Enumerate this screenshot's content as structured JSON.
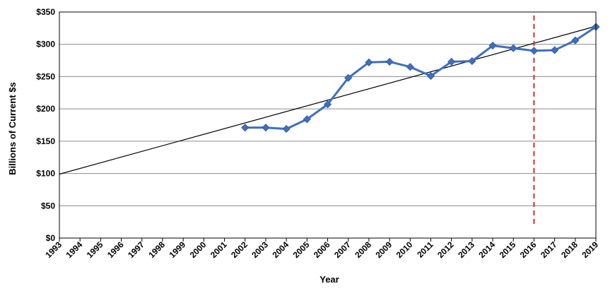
{
  "chart_data": {
    "type": "line",
    "title": "",
    "xlabel": "Year",
    "ylabel": "Billions of Current $s",
    "xlim": [
      1993,
      2019
    ],
    "ylim": [
      0,
      350
    ],
    "x_ticks": [
      "1993",
      "1994",
      "1995",
      "1996",
      "1997",
      "1998",
      "1999",
      "2000",
      "2001",
      "2002",
      "2003",
      "2004",
      "2005",
      "2006",
      "2007",
      "2008",
      "2009",
      "2010",
      "2011",
      "2012",
      "2013",
      "2014",
      "2015",
      "2016",
      "2017",
      "2018",
      "2019"
    ],
    "y_ticks": [
      "$0",
      "$50",
      "$100",
      "$150",
      "$200",
      "$250",
      "$300",
      "$350"
    ],
    "y_tick_values": [
      0,
      50,
      100,
      150,
      200,
      250,
      300,
      350
    ],
    "grid": "horizontal",
    "legend": "none",
    "series": [
      {
        "x": [
          2002,
          2003,
          2004,
          2005,
          2006,
          2007,
          2008,
          2009,
          2010,
          2011,
          2012,
          2013,
          2014,
          2015,
          2016,
          2017,
          2018,
          2019
        ],
        "values": [
          171,
          171,
          169,
          184,
          207,
          248,
          272,
          273,
          265,
          251,
          273,
          274,
          298,
          294,
          290,
          291,
          306,
          327
        ],
        "color": "#3f6fbf",
        "marker": "diamond"
      }
    ],
    "trendline": {
      "x": [
        1993,
        2019
      ],
      "values": [
        99,
        328
      ],
      "color": "#000000"
    },
    "reference_line": {
      "x": 2016,
      "y_range": [
        22,
        350
      ],
      "color": "#d62a2a",
      "style": "dashed"
    }
  }
}
